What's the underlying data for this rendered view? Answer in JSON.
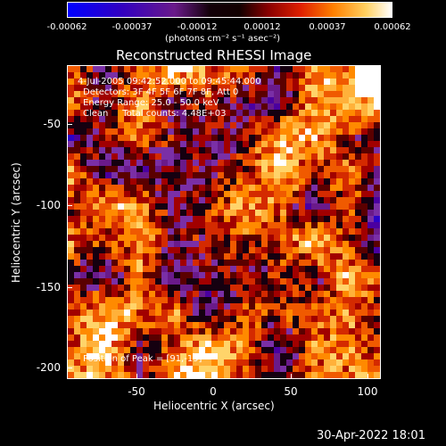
{
  "colorbar": {
    "tick_labels": [
      "-0.00062",
      "-0.00037",
      "-0.00012",
      "0.00012",
      "0.00037",
      "0.00062"
    ],
    "units": "(photons cm⁻² s⁻¹ asec⁻²)"
  },
  "title": "Reconstructed RHESSI Image",
  "overlay": {
    "time_range": "4-Jul-2005 09:42:52.000 to 09:45:44.000",
    "detectors": "Detectors: 3F 4F 5F 6F 7F 8F, Att 0",
    "energy": "Energy Range: 25.0 - 50.0 keV",
    "clean": "Clean     Total counts: 4.48E+03",
    "peak": "Position of Peak = [91,-19]"
  },
  "axes": {
    "xlabel": "Heliocentric X (arcsec)",
    "ylabel": "Heliocentric Y (arcsec)",
    "xtick_labels": [
      "-50",
      "0",
      "50",
      "100"
    ],
    "ytick_labels": [
      "-50",
      "-100",
      "-150",
      "-200"
    ]
  },
  "footer": {
    "date": "30-Apr-2022 18:01"
  },
  "colors": {
    "colormap": [
      "#0000ff",
      "#2a00c8",
      "#4a00a0",
      "#6a1a8a",
      "#7a2fa6",
      "#150010",
      "#5a0000",
      "#a10000",
      "#d42a00",
      "#f05a00",
      "#ff8a00",
      "#ffb13a",
      "#ffd46a",
      "#ffffff"
    ]
  }
}
